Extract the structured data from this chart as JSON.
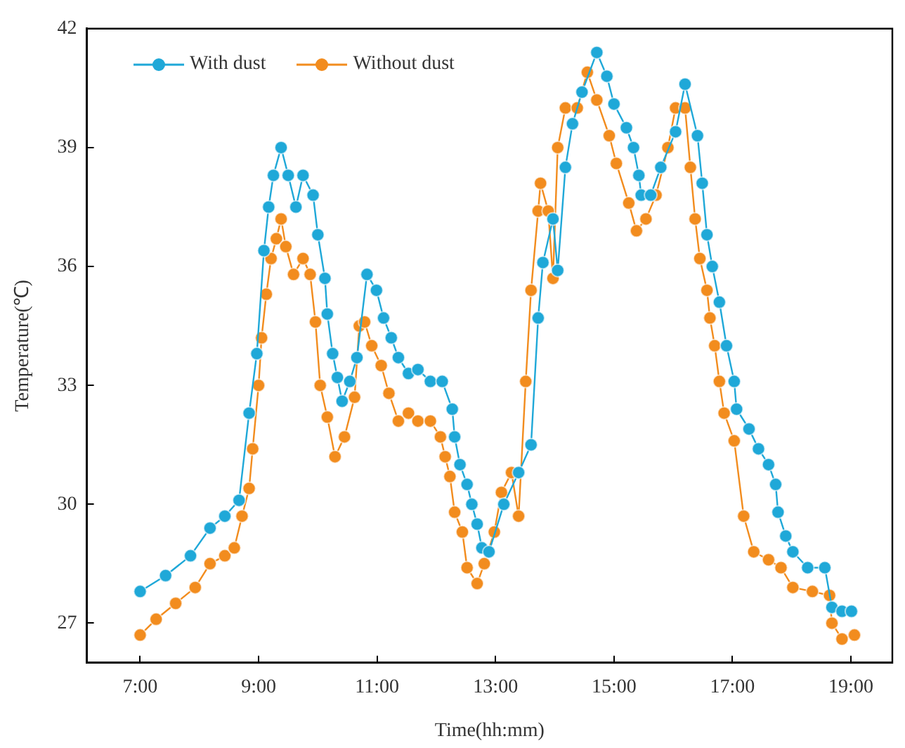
{
  "chart_data": {
    "type": "line",
    "xlabel": "Time(hh:mm)",
    "ylabel": "Temperature(℃)",
    "legend": "top left",
    "marker": "circle",
    "line_style": "solid",
    "grid": false,
    "xlim": [
      6.1,
      19.7
    ],
    "xticks": [
      {
        "value": 7,
        "label": "7:00"
      },
      {
        "value": 9,
        "label": "9:00"
      },
      {
        "value": 11,
        "label": "11:00"
      },
      {
        "value": 13,
        "label": "13:00"
      },
      {
        "value": 15,
        "label": "15:00"
      },
      {
        "value": 17,
        "label": "17:00"
      },
      {
        "value": 19,
        "label": "19:00"
      }
    ],
    "ylim": [
      26,
      42
    ],
    "yticks": [
      27,
      30,
      33,
      36,
      39,
      42
    ],
    "series": [
      {
        "name": "With dust",
        "color": "#1fa8d8",
        "x": [
          7.0,
          7.43,
          7.85,
          8.18,
          8.43,
          8.67,
          8.84,
          8.97,
          9.09,
          9.17,
          9.25,
          9.38,
          9.5,
          9.63,
          9.75,
          9.92,
          10.0,
          10.12,
          10.16,
          10.25,
          10.33,
          10.41,
          10.54,
          10.66,
          10.83,
          10.99,
          11.11,
          11.24,
          11.36,
          11.53,
          11.69,
          11.9,
          12.1,
          12.27,
          12.31,
          12.4,
          12.52,
          12.6,
          12.69,
          12.77,
          12.89,
          13.14,
          13.39,
          13.6,
          13.72,
          13.8,
          13.97,
          14.05,
          14.18,
          14.3,
          14.46,
          14.71,
          14.88,
          15.0,
          15.21,
          15.33,
          15.42,
          15.46,
          15.62,
          15.79,
          16.04,
          16.2,
          16.41,
          16.49,
          16.57,
          16.66,
          16.78,
          16.9,
          17.03,
          17.07,
          17.28,
          17.44,
          17.61,
          17.73,
          17.77,
          17.9,
          18.02,
          18.27,
          18.56,
          18.68,
          18.85,
          19.01
        ],
        "values": [
          27.8,
          28.2,
          28.7,
          29.4,
          29.7,
          30.1,
          32.3,
          33.8,
          36.4,
          37.5,
          38.3,
          39.0,
          38.3,
          37.5,
          38.3,
          37.8,
          36.8,
          35.7,
          34.8,
          33.8,
          33.2,
          32.6,
          33.1,
          33.7,
          35.8,
          35.4,
          34.7,
          34.2,
          33.7,
          33.3,
          33.4,
          33.1,
          33.1,
          32.4,
          31.7,
          31.0,
          30.5,
          30.0,
          29.5,
          28.9,
          28.8,
          30.0,
          30.8,
          31.5,
          34.7,
          36.1,
          37.2,
          35.9,
          38.5,
          39.6,
          40.4,
          41.4,
          40.8,
          40.1,
          39.5,
          39.0,
          38.3,
          37.8,
          37.8,
          38.5,
          39.4,
          40.6,
          39.3,
          38.1,
          36.8,
          36.0,
          35.1,
          34.0,
          33.1,
          32.4,
          31.9,
          31.4,
          31.0,
          30.5,
          29.8,
          29.2,
          28.8,
          28.4,
          28.4,
          27.4,
          27.3,
          27.3
        ]
      },
      {
        "name": "Without dust",
        "color": "#f28c1e",
        "x": [
          7.0,
          7.27,
          7.6,
          7.93,
          8.18,
          8.43,
          8.59,
          8.72,
          8.84,
          8.9,
          9.0,
          9.05,
          9.13,
          9.21,
          9.3,
          9.38,
          9.46,
          9.59,
          9.75,
          9.87,
          9.96,
          10.04,
          10.16,
          10.29,
          10.45,
          10.62,
          10.7,
          10.79,
          10.91,
          11.07,
          11.2,
          11.36,
          11.53,
          11.69,
          11.9,
          12.07,
          12.15,
          12.23,
          12.31,
          12.44,
          12.52,
          12.69,
          12.81,
          12.98,
          13.1,
          13.27,
          13.39,
          13.51,
          13.6,
          13.72,
          13.76,
          13.89,
          13.97,
          14.05,
          14.18,
          14.38,
          14.55,
          14.71,
          14.92,
          15.04,
          15.25,
          15.38,
          15.54,
          15.71,
          15.91,
          16.04,
          16.2,
          16.29,
          16.37,
          16.45,
          16.57,
          16.62,
          16.7,
          16.78,
          16.86,
          17.03,
          17.19,
          17.36,
          17.61,
          17.82,
          18.02,
          18.35,
          18.64,
          18.68,
          18.85,
          19.06
        ],
        "values": [
          26.7,
          27.1,
          27.5,
          27.9,
          28.5,
          28.7,
          28.9,
          29.7,
          30.4,
          31.4,
          33.0,
          34.2,
          35.3,
          36.2,
          36.7,
          37.2,
          36.5,
          35.8,
          36.2,
          35.8,
          34.6,
          33.0,
          32.2,
          31.2,
          31.7,
          32.7,
          34.5,
          34.6,
          34.0,
          33.5,
          32.8,
          32.1,
          32.3,
          32.1,
          32.1,
          31.7,
          31.2,
          30.7,
          29.8,
          29.3,
          28.4,
          28.0,
          28.5,
          29.3,
          30.3,
          30.8,
          29.7,
          33.1,
          35.4,
          37.4,
          38.1,
          37.4,
          35.7,
          39.0,
          40.0,
          40.0,
          40.9,
          40.2,
          39.3,
          38.6,
          37.6,
          36.9,
          37.2,
          37.8,
          39.0,
          40.0,
          40.0,
          38.5,
          37.2,
          36.2,
          35.4,
          34.7,
          34.0,
          33.1,
          32.3,
          31.6,
          29.7,
          28.8,
          28.6,
          28.4,
          27.9,
          27.8,
          27.7,
          27.0,
          26.6,
          26.7
        ]
      }
    ]
  }
}
